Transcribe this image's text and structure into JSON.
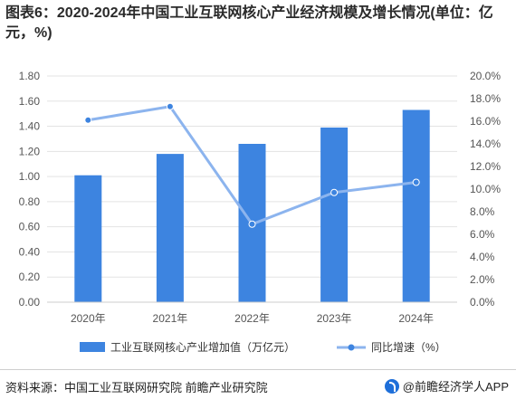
{
  "title": "图表6：2020-2024年中国工业互联网核心产业经济规模及增长情况(单位：亿元，%)",
  "footer": {
    "source": "资料来源：中国工业互联网研究院 前瞻产业研究院",
    "brand": "@前瞻经济学人APP"
  },
  "colors": {
    "bar": "#3d84e0",
    "line": "#8cb4ee",
    "grid": "#e3e3e3",
    "axis_text": "#555555"
  },
  "chart_data": {
    "type": "bar",
    "categories": [
      "2020年",
      "2021年",
      "2022年",
      "2023年",
      "2024年"
    ],
    "series": [
      {
        "name": "工业互联网核心产业增加值（万亿元）",
        "type": "bar",
        "axis": "left",
        "values": [
          1.01,
          1.18,
          1.26,
          1.39,
          1.53
        ]
      },
      {
        "name": "同比增速（%）",
        "type": "line",
        "axis": "right",
        "values": [
          16.1,
          17.3,
          6.9,
          9.7,
          10.6
        ]
      }
    ],
    "y_left": {
      "min": 0,
      "max": 1.8,
      "ticks": [
        "0.00",
        "0.20",
        "0.40",
        "0.60",
        "0.80",
        "1.00",
        "1.20",
        "1.40",
        "1.60",
        "1.80"
      ]
    },
    "y_right": {
      "min": 0,
      "max": 20,
      "ticks": [
        "0.0%",
        "2.0%",
        "4.0%",
        "6.0%",
        "8.0%",
        "10.0%",
        "12.0%",
        "14.0%",
        "16.0%",
        "18.0%",
        "20.0%"
      ]
    },
    "grid": true,
    "legend_position": "bottom"
  }
}
